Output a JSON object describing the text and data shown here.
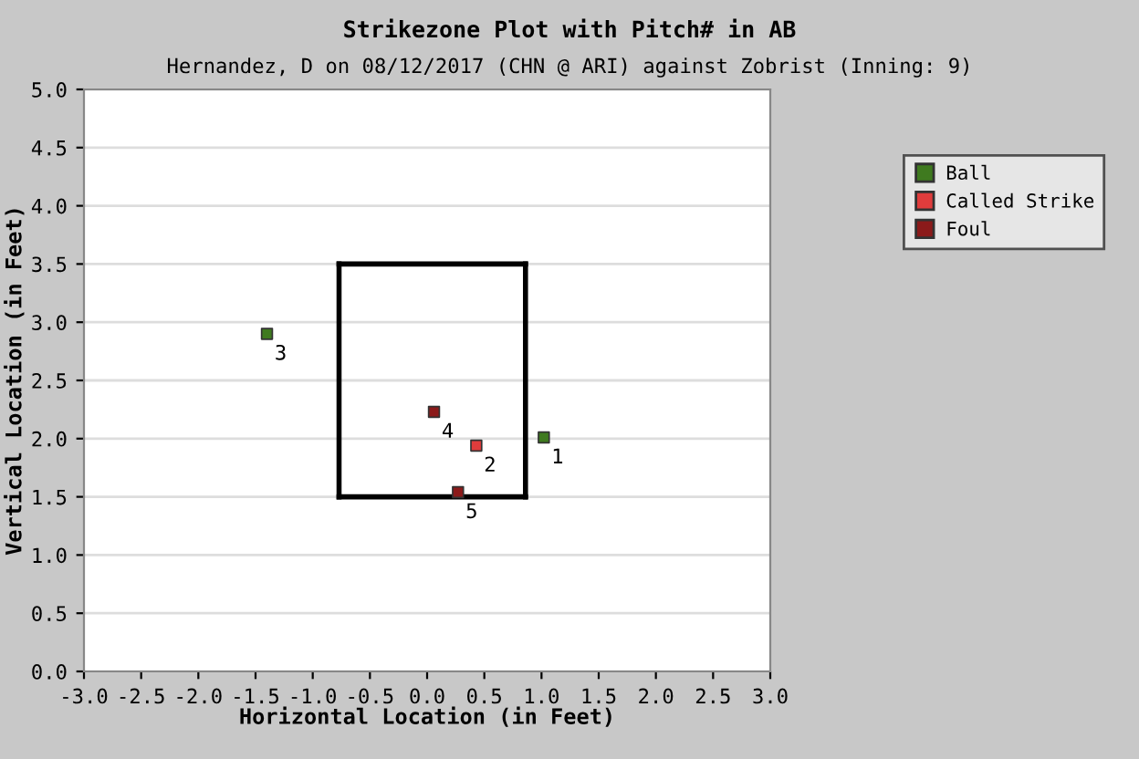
{
  "chart_data": {
    "type": "scatter",
    "title": "Strikezone Plot with Pitch# in AB",
    "subtitle": "Hernandez, D on 08/12/2017 (CHN @ ARI) against Zobrist (Inning: 9)",
    "xlabel": "Horizontal Location (in Feet)",
    "ylabel": "Vertical Location (in Feet)",
    "xlim": [
      -3.0,
      3.0
    ],
    "ylim": [
      0.0,
      5.0
    ],
    "xticks": [
      {
        "value": -3,
        "label": "-3.0"
      },
      {
        "value": -2.5,
        "label": "-2.5"
      },
      {
        "value": -2,
        "label": "-2.0"
      },
      {
        "value": -1.5,
        "label": "-1.5"
      },
      {
        "value": -1,
        "label": "-1.0"
      },
      {
        "value": -0.5,
        "label": "-0.5"
      },
      {
        "value": 0,
        "label": "0.0"
      },
      {
        "value": 0.5,
        "label": "0.5"
      },
      {
        "value": 1,
        "label": "1.0"
      },
      {
        "value": 1.5,
        "label": "1.5"
      },
      {
        "value": 2,
        "label": "2.0"
      },
      {
        "value": 2.5,
        "label": "2.5"
      },
      {
        "value": 3,
        "label": "3.0"
      }
    ],
    "yticks": [
      {
        "value": 0,
        "label": "0.0"
      },
      {
        "value": 0.5,
        "label": "0.5"
      },
      {
        "value": 1,
        "label": "1.0"
      },
      {
        "value": 1.5,
        "label": "1.5"
      },
      {
        "value": 2,
        "label": "2.0"
      },
      {
        "value": 2.5,
        "label": "2.5"
      },
      {
        "value": 3,
        "label": "3.0"
      },
      {
        "value": 3.5,
        "label": "3.5"
      },
      {
        "value": 4,
        "label": "4.0"
      },
      {
        "value": 4.5,
        "label": "4.5"
      },
      {
        "value": 5,
        "label": "5.0"
      }
    ],
    "grid": "y",
    "legend": "top right",
    "marker": "square",
    "series": [
      {
        "type": "line",
        "marker": "none",
        "line_style": "solid",
        "color": "#000000",
        "x": [
          -0.77,
          0.86
        ],
        "values": [
          1.5,
          1.5
        ]
      },
      {
        "type": "line",
        "marker": "none",
        "line_style": "solid",
        "color": "#000000",
        "x": [
          -0.77,
          0.86
        ],
        "values": [
          3.5,
          3.5
        ]
      },
      {
        "type": "line",
        "marker": "none",
        "line_style": "solid",
        "color": "#000000",
        "x": [
          -0.77,
          -0.77
        ],
        "values": [
          1.5,
          3.5
        ]
      },
      {
        "type": "line",
        "marker": "none",
        "line_style": "solid",
        "color": "#000000",
        "x": [
          0.86,
          0.86
        ],
        "values": [
          1.5,
          3.5
        ]
      },
      {
        "name": "Ball",
        "color": "#3f7a1f",
        "x": [
          1.02,
          -1.4
        ],
        "values": [
          2.01,
          2.9
        ]
      },
      {
        "name": "Called Strike",
        "color": "#e03c3c",
        "x": [
          0.43
        ],
        "values": [
          1.94
        ]
      },
      {
        "name": "Foul",
        "color": "#8b1a1a",
        "x": [
          0.06,
          0.27
        ],
        "values": [
          2.23,
          1.54
        ]
      }
    ],
    "annotations": [
      {
        "text": "1",
        "x": 1.02,
        "y": 2.01
      },
      {
        "text": "2",
        "x": 0.43,
        "y": 1.94
      },
      {
        "text": "3",
        "x": -1.4,
        "y": 2.9
      },
      {
        "text": "4",
        "x": 0.06,
        "y": 2.23
      },
      {
        "text": "5",
        "x": 0.27,
        "y": 1.54
      }
    ]
  }
}
